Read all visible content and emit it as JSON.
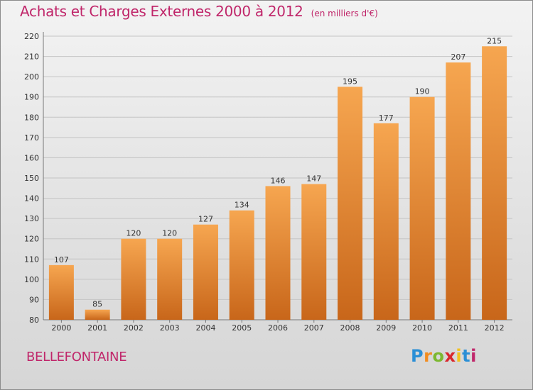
{
  "title": "Achats et Charges Externes 2000 à 2012",
  "unit_note": "(en milliers d'€)",
  "place": "BELLEFONTAINE",
  "logo": {
    "letters": [
      "P",
      "r",
      "o",
      "x",
      "i",
      "t",
      "i"
    ],
    "colors": [
      "#2a8fd6",
      "#f28c1f",
      "#7cb830",
      "#d9262c",
      "#f2c11f",
      "#2a8fd6",
      "#c0266a"
    ]
  },
  "colors": {
    "accent": "#c0266a",
    "bar_top": "#f6a650",
    "bar_bottom": "#c8661a"
  },
  "chart_data": {
    "type": "bar",
    "categories": [
      "2000",
      "2001",
      "2002",
      "2003",
      "2004",
      "2005",
      "2006",
      "2007",
      "2008",
      "2009",
      "2010",
      "2011",
      "2012"
    ],
    "values": [
      107,
      85,
      120,
      120,
      127,
      134,
      146,
      147,
      195,
      177,
      190,
      207,
      215
    ],
    "ylim": [
      80,
      220
    ],
    "yticks": [
      80,
      90,
      100,
      110,
      120,
      130,
      140,
      150,
      160,
      170,
      180,
      190,
      200,
      210,
      220
    ],
    "grid": true
  }
}
